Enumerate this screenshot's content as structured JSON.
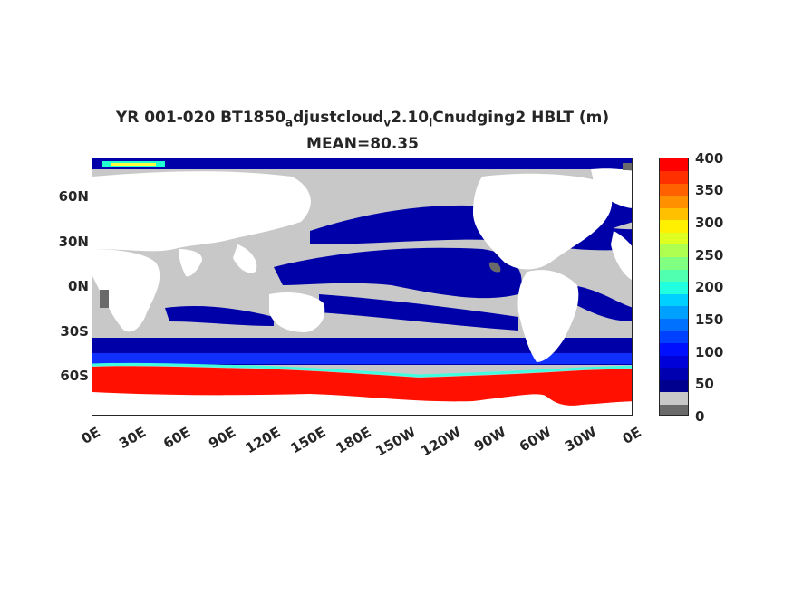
{
  "title": {
    "prefix": "YR 001-020 BT1850",
    "sub1": "a",
    "mid1": "djustcloud",
    "sub2": "v",
    "mid2": "2.10",
    "sub3": "l",
    "suffix": "Cnudging2  HBLT (m)",
    "mean": "MEAN=80.35"
  },
  "axes": {
    "lat_ticks": [
      "60N",
      "30N",
      "0N",
      "30S",
      "60S"
    ],
    "lon_ticks": [
      "0E",
      "30E",
      "60E",
      "90E",
      "120E",
      "150E",
      "180E",
      "150W",
      "120W",
      "90W",
      "60W",
      "30W",
      "0E"
    ]
  },
  "colorbar": {
    "tick_labels": [
      "400",
      "350",
      "300",
      "250",
      "200",
      "150",
      "100",
      "50",
      "0"
    ],
    "colors": [
      "#6a6a6a",
      "#c8c8c8",
      "#00008f",
      "#0000b0",
      "#0000d8",
      "#0010ff",
      "#0040ff",
      "#0070ff",
      "#00a0ff",
      "#00d0ff",
      "#20ffdf",
      "#50ffaf",
      "#80ff80",
      "#afff50",
      "#dfff20",
      "#ffef00",
      "#ffc000",
      "#ff9000",
      "#ff6000",
      "#ff3000",
      "#ff0000"
    ]
  },
  "map_colors": {
    "land": "#ffffff",
    "ice_dark": "#6a6a6a",
    "shallow": "#c8c8c8",
    "deep_blue": "#0000a8",
    "mid_blue": "#1030ff",
    "southern_red": "#ff1000",
    "cyan_front": "#40ffe0"
  }
}
